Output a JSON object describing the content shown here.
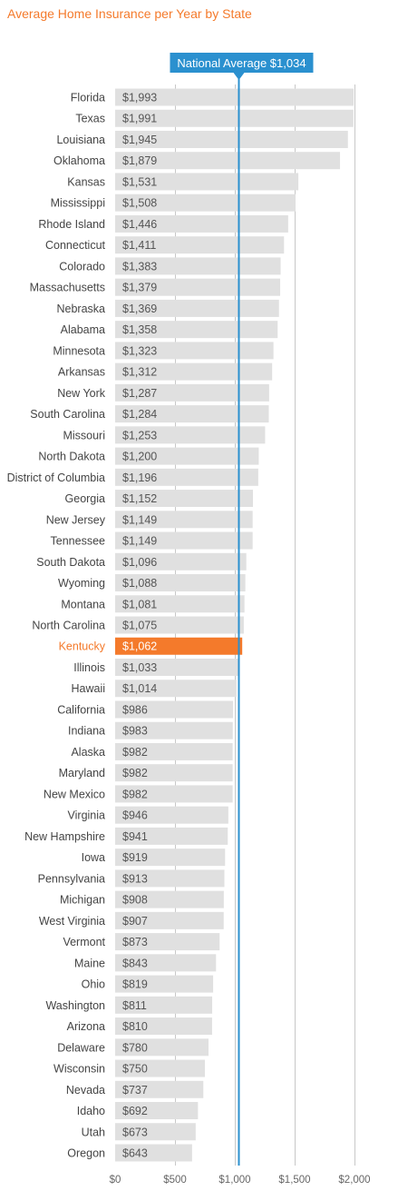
{
  "chart_data": {
    "type": "bar",
    "orientation": "horizontal",
    "title": "Average Home Insurance per Year by State",
    "categories": [
      "Florida",
      "Texas",
      "Louisiana",
      "Oklahoma",
      "Kansas",
      "Mississippi",
      "Rhode Island",
      "Connecticut",
      "Colorado",
      "Massachusetts",
      "Nebraska",
      "Alabama",
      "Minnesota",
      "Arkansas",
      "New York",
      "South Carolina",
      "Missouri",
      "North Dakota",
      "District of Columbia",
      "Georgia",
      "New Jersey",
      "Tennessee",
      "South Dakota",
      "Wyoming",
      "Montana",
      "North Carolina",
      "Kentucky",
      "Illinois",
      "Hawaii",
      "California",
      "Indiana",
      "Alaska",
      "Maryland",
      "New Mexico",
      "Virginia",
      "New Hampshire",
      "Iowa",
      "Pennsylvania",
      "Michigan",
      "West Virginia",
      "Vermont",
      "Maine",
      "Ohio",
      "Washington",
      "Arizona",
      "Delaware",
      "Wisconsin",
      "Nevada",
      "Idaho",
      "Utah",
      "Oregon"
    ],
    "values": [
      1993,
      1991,
      1945,
      1879,
      1531,
      1508,
      1446,
      1411,
      1383,
      1379,
      1369,
      1358,
      1323,
      1312,
      1287,
      1284,
      1253,
      1200,
      1196,
      1152,
      1149,
      1149,
      1096,
      1088,
      1081,
      1075,
      1062,
      1033,
      1014,
      986,
      983,
      982,
      982,
      982,
      946,
      941,
      919,
      913,
      908,
      907,
      873,
      843,
      819,
      811,
      810,
      780,
      750,
      737,
      692,
      673,
      643
    ],
    "value_labels": [
      "$1,993",
      "$1,991",
      "$1,945",
      "$1,879",
      "$1,531",
      "$1,508",
      "$1,446",
      "$1,411",
      "$1,383",
      "$1,379",
      "$1,369",
      "$1,358",
      "$1,323",
      "$1,312",
      "$1,287",
      "$1,284",
      "$1,253",
      "$1,200",
      "$1,196",
      "$1,152",
      "$1,149",
      "$1,149",
      "$1,096",
      "$1,088",
      "$1,081",
      "$1,075",
      "$1,062",
      "$1,033",
      "$1,014",
      "$986",
      "$983",
      "$982",
      "$982",
      "$982",
      "$946",
      "$941",
      "$919",
      "$913",
      "$908",
      "$907",
      "$873",
      "$843",
      "$819",
      "$811",
      "$810",
      "$780",
      "$750",
      "$737",
      "$692",
      "$673",
      "$643"
    ],
    "highlight": "Kentucky",
    "reference_line": {
      "label": "National Average $1,034",
      "value": 1034
    },
    "xlim": [
      0,
      2000
    ],
    "x_ticks": [
      0,
      500,
      1000,
      1500,
      2000
    ],
    "x_tick_labels": [
      "$0",
      "$500",
      "$1,000",
      "$1,500",
      "$2,000"
    ],
    "grid": true,
    "colors": {
      "bar": "#e0e0e0",
      "highlight": "#f47a2b",
      "reference": "#2a90cf",
      "label": "#444444",
      "value_label": "#555555",
      "grid": "#c8c8c8",
      "title": "#f47a2b"
    }
  }
}
